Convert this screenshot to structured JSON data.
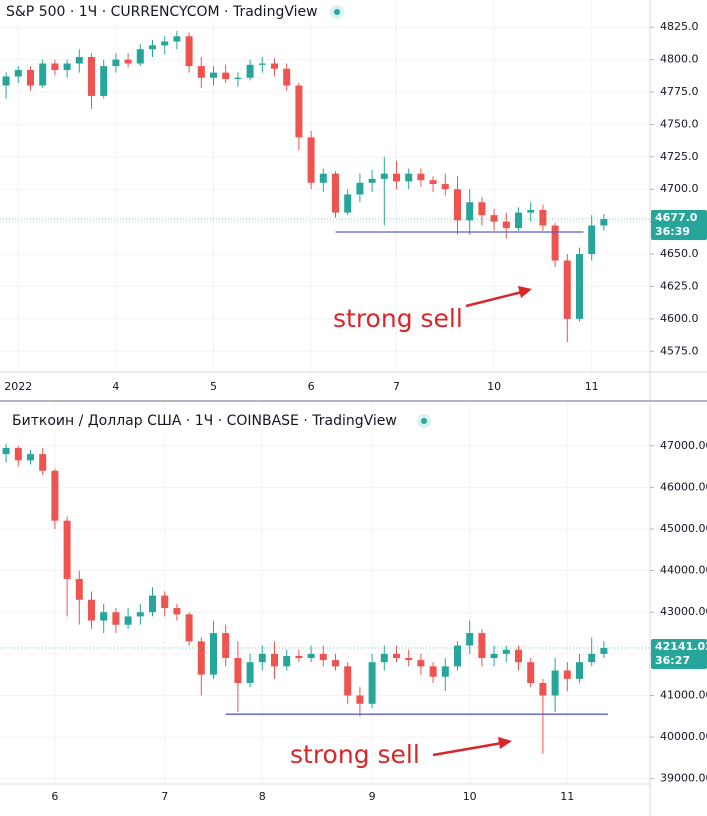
{
  "chart_data": [
    {
      "type": "candlestick",
      "title": "S&P 500 · 1Ч · CURRENCYCOM · TradingView",
      "annotation": "strong sell",
      "price_label": "4677.0",
      "countdown": "36:39",
      "up_color": "#26a69a",
      "down_color": "#ef5350",
      "support_level": 4667,
      "support_color": "#5b5bd6",
      "categories": [
        null,
        "2022",
        null,
        null,
        null,
        null,
        null,
        null,
        null,
        "4",
        null,
        null,
        null,
        null,
        null,
        null,
        null,
        "5",
        null,
        null,
        null,
        null,
        null,
        null,
        null,
        "6",
        null,
        null,
        null,
        null,
        null,
        null,
        "7",
        null,
        null,
        null,
        null,
        null,
        null,
        null,
        "10",
        null,
        null,
        null,
        null,
        null,
        null,
        null,
        "11",
        null
      ],
      "open": [
        4780,
        4787,
        4792,
        4780,
        4797,
        4792,
        4797,
        4802,
        4772,
        4795,
        4800,
        4797,
        4808,
        4811,
        4814,
        4818,
        4795,
        4786,
        4790,
        4785,
        4786,
        4796,
        4797,
        4793,
        4780,
        4740,
        4705,
        4712,
        4682,
        4696,
        4705,
        4708,
        4712,
        4706,
        4712,
        4707,
        4704,
        4700,
        4676,
        4690,
        4680,
        4675,
        4670,
        4682,
        4684,
        4672,
        4645,
        4600,
        4650,
        4672
      ],
      "high": [
        4790,
        4795,
        4795,
        4800,
        4800,
        4800,
        4808,
        4805,
        4800,
        4805,
        4805,
        4812,
        4815,
        4818,
        4822,
        4821,
        4802,
        4795,
        4796,
        4790,
        4800,
        4802,
        4801,
        4797,
        4782,
        4745,
        4716,
        4714,
        4700,
        4712,
        4715,
        4725,
        4722,
        4716,
        4716,
        4710,
        4712,
        4710,
        4700,
        4694,
        4685,
        4682,
        4686,
        4690,
        4688,
        4674,
        4650,
        4655,
        4680,
        4681
      ],
      "low": [
        4770,
        4782,
        4776,
        4778,
        4788,
        4786,
        4790,
        4762,
        4770,
        4790,
        4794,
        4795,
        4802,
        4804,
        4808,
        4790,
        4778,
        4780,
        4782,
        4779,
        4784,
        4790,
        4787,
        4776,
        4730,
        4700,
        4698,
        4678,
        4680,
        4690,
        4698,
        4672,
        4700,
        4700,
        4702,
        4698,
        4695,
        4665,
        4665,
        4672,
        4668,
        4662,
        4668,
        4675,
        4668,
        4640,
        4582,
        4598,
        4645,
        4668
      ],
      "close": [
        4787,
        4792,
        4780,
        4797,
        4792,
        4797,
        4802,
        4772,
        4795,
        4800,
        4797,
        4808,
        4811,
        4814,
        4818,
        4795,
        4786,
        4790,
        4785,
        4786,
        4796,
        4797,
        4793,
        4780,
        4740,
        4705,
        4712,
        4682,
        4696,
        4705,
        4708,
        4712,
        4706,
        4712,
        4707,
        4704,
        4700,
        4676,
        4690,
        4680,
        4675,
        4670,
        4682,
        4684,
        4672,
        4645,
        4600,
        4650,
        4672,
        4677
      ],
      "ylim": [
        4559,
        4846
      ],
      "yticks": [
        {
          "value": 4575,
          "label": "4575.0"
        },
        {
          "value": 4600,
          "label": "4600.0"
        },
        {
          "value": 4625,
          "label": "4625.0"
        },
        {
          "value": 4650,
          "label": "4650.0"
        },
        {
          "value": 4675,
          "label": "4675.0"
        },
        {
          "value": 4700,
          "label": "4700.0"
        },
        {
          "value": 4725,
          "label": "4725.0"
        },
        {
          "value": 4750,
          "label": "4750.0"
        },
        {
          "value": 4775,
          "label": "4775.0"
        },
        {
          "value": 4800,
          "label": "4800.0"
        },
        {
          "value": 4825,
          "label": "4825.0"
        }
      ],
      "grid": true
    },
    {
      "type": "candlestick",
      "title": "Биткоин / Доллар США · 1Ч · COINBASE · TradingView",
      "annotation": "strong sell",
      "price_label": "42141.02",
      "countdown": "36:27",
      "up_color": "#26a69a",
      "down_color": "#ef5350",
      "support_level": 40550,
      "support_color": "#5b5bd6",
      "categories": [
        null,
        null,
        null,
        null,
        "6",
        null,
        null,
        null,
        null,
        null,
        null,
        null,
        null,
        "7",
        null,
        null,
        null,
        null,
        null,
        null,
        null,
        "8",
        null,
        null,
        null,
        null,
        null,
        null,
        null,
        null,
        "9",
        null,
        null,
        null,
        null,
        null,
        null,
        null,
        "10",
        null,
        null,
        null,
        null,
        null,
        null,
        null,
        "11",
        null,
        null,
        null
      ],
      "open": [
        46800,
        46950,
        46650,
        46800,
        46400,
        45200,
        43800,
        43300,
        42800,
        43000,
        42700,
        42900,
        43000,
        43400,
        43100,
        42950,
        42300,
        41500,
        42500,
        41900,
        41300,
        41800,
        42000,
        41700,
        41950,
        41900,
        42000,
        41850,
        41700,
        41000,
        40800,
        41800,
        42000,
        41900,
        41850,
        41700,
        41450,
        41700,
        42200,
        42500,
        41900,
        42000,
        42100,
        41800,
        41300,
        41000,
        41600,
        41400,
        41800,
        42000
      ],
      "high": [
        47050,
        47000,
        46900,
        46950,
        46450,
        45300,
        44000,
        43500,
        43200,
        43100,
        43100,
        43200,
        43600,
        43500,
        43200,
        43000,
        42400,
        42800,
        42700,
        42300,
        42000,
        42200,
        42300,
        42100,
        42100,
        42200,
        42200,
        42000,
        41800,
        41200,
        42000,
        42200,
        42200,
        42100,
        42000,
        41800,
        41900,
        42300,
        42800,
        42600,
        42200,
        42200,
        42200,
        41900,
        41400,
        41900,
        41800,
        42000,
        42400,
        42300
      ],
      "low": [
        46600,
        46500,
        46550,
        46300,
        45000,
        42900,
        42700,
        42600,
        42500,
        42500,
        42600,
        42700,
        42900,
        42900,
        42800,
        42200,
        41000,
        41400,
        41700,
        40600,
        41200,
        41600,
        41400,
        41600,
        41800,
        41800,
        41700,
        41600,
        40800,
        40500,
        40700,
        41600,
        41800,
        41700,
        41500,
        41300,
        41100,
        41600,
        42000,
        41700,
        41700,
        41800,
        41600,
        41200,
        39600,
        40600,
        41100,
        41300,
        41700,
        41900
      ],
      "close": [
        46950,
        46650,
        46800,
        46400,
        45200,
        43800,
        43300,
        42800,
        43000,
        42700,
        42900,
        43000,
        43400,
        43100,
        42950,
        42300,
        41500,
        42500,
        41900,
        41300,
        41800,
        42000,
        41700,
        41950,
        41900,
        42000,
        41850,
        41700,
        41000,
        40800,
        41800,
        42000,
        41900,
        41850,
        41700,
        41450,
        41700,
        42200,
        42500,
        41900,
        42000,
        42100,
        41800,
        41300,
        41000,
        41600,
        41400,
        41800,
        42000,
        42141.02
      ],
      "ylim": [
        38200,
        47860
      ],
      "yticks": [
        {
          "value": 39000,
          "label": "39000.00"
        },
        {
          "value": 40000,
          "label": "40000.00"
        },
        {
          "value": 41000,
          "label": "41000.00"
        },
        {
          "value": 42000,
          "label": "42000.00"
        },
        {
          "value": 43000,
          "label": "43000.00"
        },
        {
          "value": 44000,
          "label": "44000.00"
        },
        {
          "value": 45000,
          "label": "45000.00"
        },
        {
          "value": 46000,
          "label": "46000.00"
        },
        {
          "value": 47000,
          "label": "47000.00"
        }
      ],
      "grid": true
    }
  ]
}
